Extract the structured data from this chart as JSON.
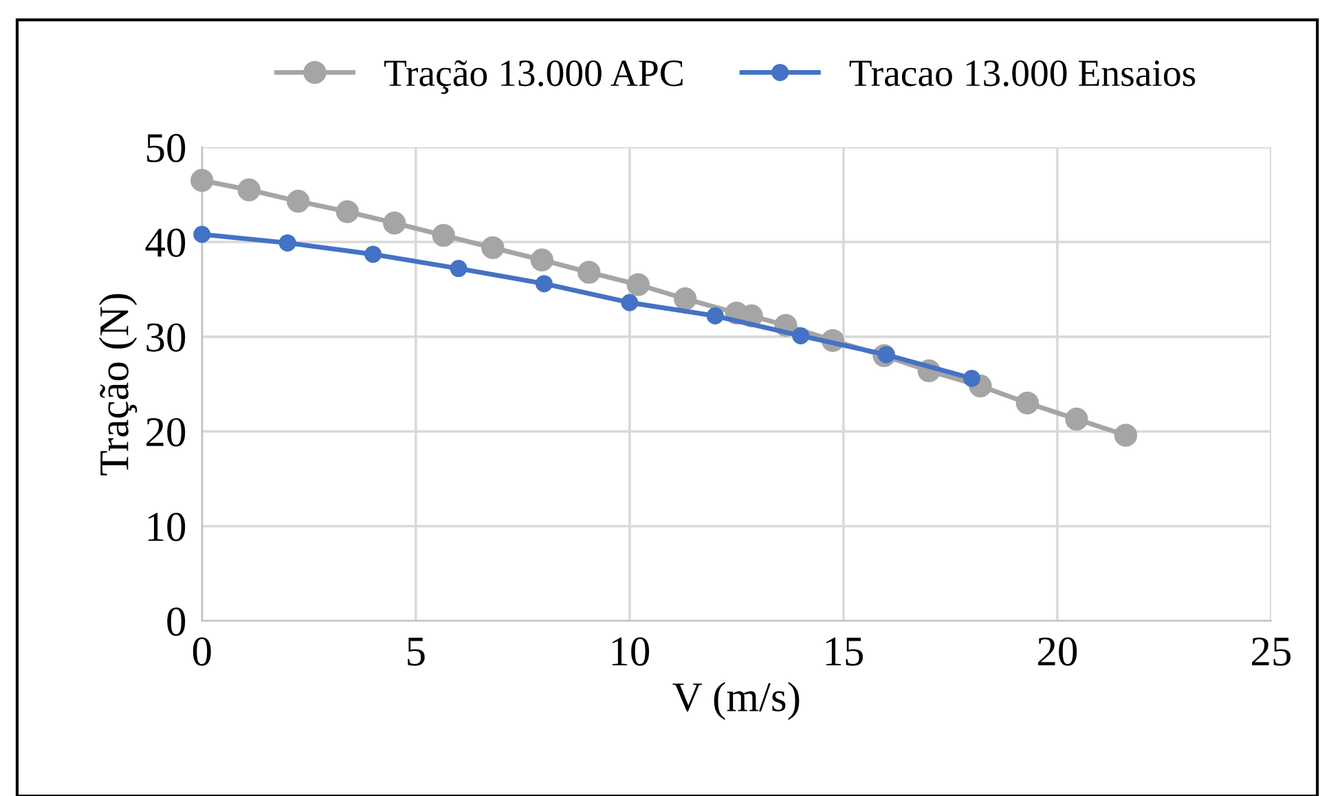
{
  "chart_data": {
    "type": "line",
    "xlabel": "V (m/s)",
    "ylabel": "Tração (N)",
    "xlim": [
      0,
      25
    ],
    "xticks": [
      0,
      5,
      10,
      15,
      20,
      25
    ],
    "ylim": [
      0,
      50
    ],
    "yticks": [
      0,
      10,
      20,
      30,
      40,
      50
    ],
    "grid": true,
    "legend": "top",
    "marker": "circle",
    "line_style": "solid",
    "series": [
      {
        "name": "Tração 13.000 APC",
        "color": "#a5a5a5",
        "x": [
          0,
          1.1,
          2.25,
          3.4,
          4.5,
          5.65,
          6.8,
          7.95,
          9.05,
          10.2,
          11.3,
          12.5,
          12.85,
          13.65,
          14.75,
          15.95,
          17.0,
          18.2,
          19.3,
          20.45,
          21.6
        ],
        "values": [
          46.5,
          45.5,
          44.3,
          43.2,
          42.0,
          40.7,
          39.4,
          38.1,
          36.8,
          35.5,
          34.0,
          32.5,
          32.2,
          31.2,
          29.6,
          28.0,
          26.4,
          24.8,
          23.0,
          21.3,
          19.6
        ]
      },
      {
        "name": "Tracao 13.000 Ensaios",
        "color": "#4472c4",
        "x": [
          0,
          2,
          4,
          6,
          8,
          10,
          12,
          14,
          16,
          18
        ],
        "values": [
          40.8,
          39.9,
          38.7,
          37.2,
          35.6,
          33.6,
          32.2,
          30.1,
          28.1,
          25.6
        ]
      }
    ]
  }
}
